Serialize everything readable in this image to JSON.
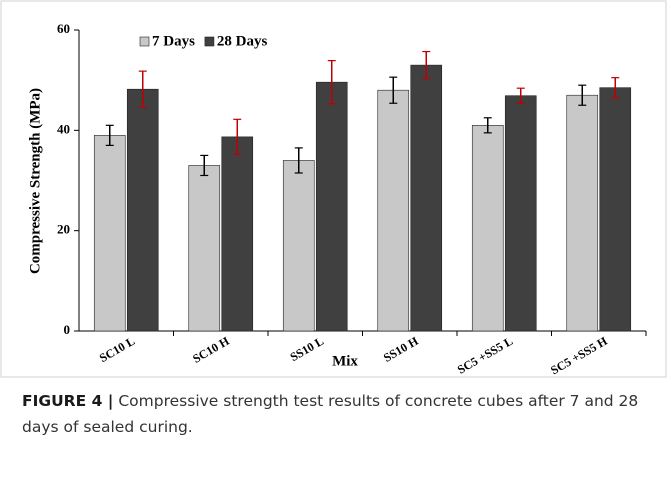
{
  "chart_data": {
    "type": "bar",
    "ylabel": "Compressive Strength  (MPa)",
    "xlabel": "Mix",
    "categories": [
      "SC10 L",
      "SC10 H",
      "SS10 L",
      "SS10 H",
      "SC5 +SS5 L",
      "SC5 +SS5 H"
    ],
    "series": [
      {
        "name": "7 Days",
        "color": "#c8c8c8",
        "error_color": "#000000",
        "values": [
          39,
          33,
          34,
          48,
          41,
          47
        ],
        "errors": [
          2,
          2,
          2.5,
          2.6,
          1.5,
          2
        ]
      },
      {
        "name": "28 Days",
        "color": "#404040",
        "error_color": "#c00000",
        "values": [
          48.2,
          38.7,
          49.6,
          53,
          46.9,
          48.5
        ],
        "errors": [
          3.6,
          3.5,
          4.3,
          2.7,
          1.5,
          2
        ]
      }
    ],
    "ylim": [
      0,
      60
    ],
    "yticks": [
      0,
      20,
      40,
      60
    ],
    "grid": false,
    "legend": "top-left"
  },
  "caption": {
    "label": "FIGURE 4 |",
    "text": " Compressive strength test results of concrete cubes after 7 and 28 days of sealed curing."
  }
}
